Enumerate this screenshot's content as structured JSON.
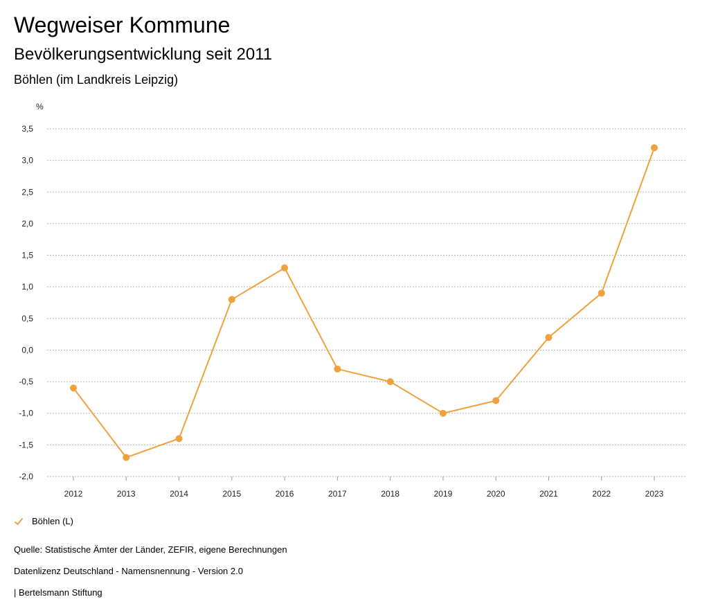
{
  "header": {
    "title": "Wegweiser Kommune",
    "subtitle": "Bevölkerungsentwicklung seit 2011",
    "region": "Böhlen (im Landkreis Leipzig)"
  },
  "chart_data": {
    "type": "line",
    "title": "Bevölkerungsentwicklung seit 2011",
    "ylabel": "%",
    "xlabel": "",
    "categories": [
      "2012",
      "2013",
      "2014",
      "2015",
      "2016",
      "2017",
      "2018",
      "2019",
      "2020",
      "2021",
      "2022",
      "2023"
    ],
    "series": [
      {
        "name": "Böhlen (L)",
        "color": "#f0a03c",
        "values": [
          -0.6,
          -1.7,
          -1.4,
          0.8,
          1.3,
          -0.3,
          -0.5,
          -1.0,
          -0.8,
          0.2,
          0.9,
          3.2
        ]
      }
    ],
    "ylim": [
      -2.0,
      3.5
    ],
    "yticks": [
      3.5,
      3.0,
      2.5,
      2.0,
      1.5,
      1.0,
      0.5,
      0.0,
      -0.5,
      -1.0,
      -1.5,
      -2.0
    ],
    "ytick_labels": [
      "3,5",
      "3,0",
      "2,5",
      "2,0",
      "1,5",
      "1,0",
      "0,5",
      "0,0",
      "-0,5",
      "-1,0",
      "-1,5",
      "-2,0"
    ],
    "grid": true,
    "legend_position": "bottom-left"
  },
  "legend": {
    "label": "Böhlen (L)"
  },
  "footer": {
    "source": "Quelle: Statistische Ämter der Länder, ZEFIR, eigene Berechnungen",
    "license": "Datenlizenz Deutschland - Namensnennung - Version 2.0",
    "publisher": "| Bertelsmann Stiftung"
  }
}
